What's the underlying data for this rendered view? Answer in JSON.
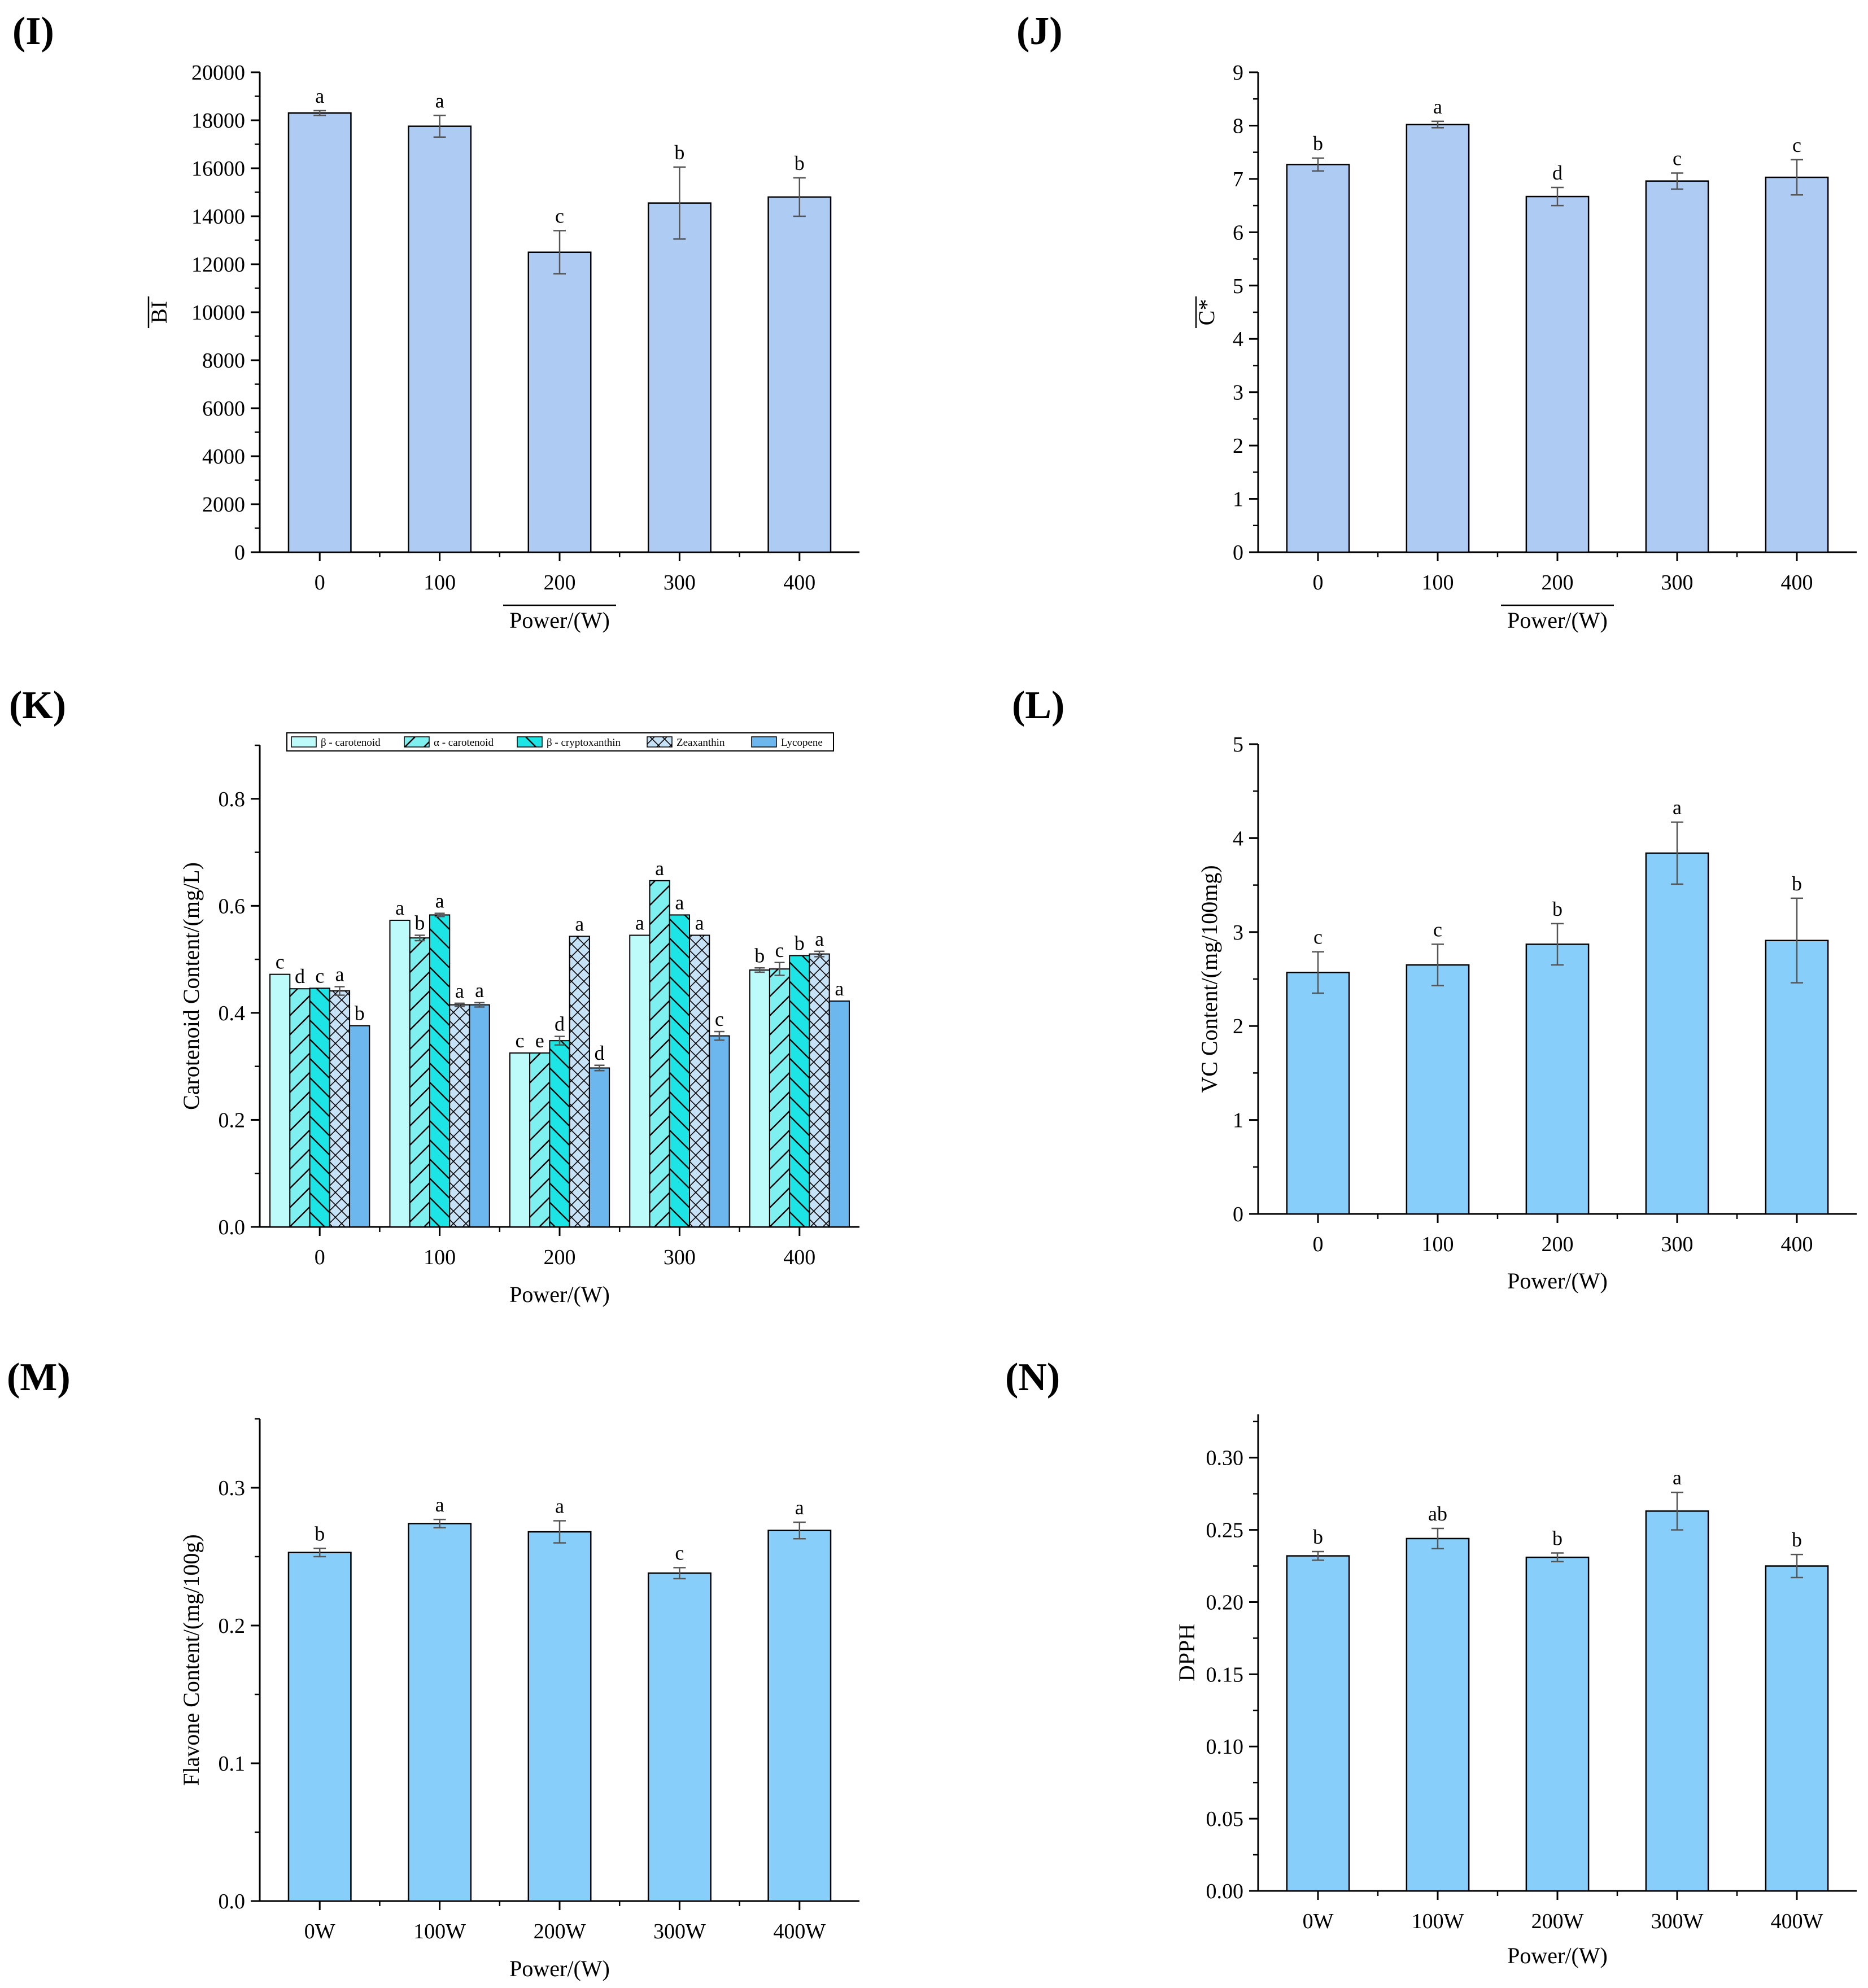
{
  "colors": {
    "light_bar": "#aecbf4",
    "blue_bar": "#87cefa",
    "beta_carotenoid": "#bdfbfb",
    "alpha_carotenoid": "#7ff0f0",
    "cryptoxanthin": "#1ee5e5",
    "zeaxanthin": "#c6e2f6",
    "lycopene": "#6cb8ee",
    "stroke": "#000000"
  },
  "chart_data": [
    {
      "id": "I",
      "panel_label": "(I)",
      "type": "bar",
      "categories": [
        "0",
        "100",
        "200",
        "300",
        "400"
      ],
      "values": [
        18300,
        17750,
        12500,
        14550,
        14800
      ],
      "errors": [
        100,
        450,
        900,
        1500,
        800
      ],
      "letters": [
        "a",
        "a",
        "c",
        "b",
        "b"
      ],
      "xlabel": "Power/(W)",
      "ylabel": "BI",
      "ylim": [
        0,
        20000
      ],
      "yticks": [
        0,
        2000,
        4000,
        6000,
        8000,
        10000,
        12000,
        14000,
        16000,
        18000,
        20000
      ],
      "ytick_labels": [
        "0",
        "2000",
        "4000",
        "6000",
        "8000",
        "10000",
        "12000",
        "14000",
        "16000",
        "18000",
        "20000"
      ],
      "color": "light_bar"
    },
    {
      "id": "J",
      "panel_label": "(J)",
      "type": "bar",
      "categories": [
        "0",
        "100",
        "200",
        "300",
        "400"
      ],
      "values": [
        7.27,
        8.02,
        6.67,
        6.96,
        7.03
      ],
      "errors": [
        0.12,
        0.06,
        0.17,
        0.15,
        0.33
      ],
      "letters": [
        "b",
        "a",
        "d",
        "c",
        "c"
      ],
      "xlabel": "Power/(W)",
      "ylabel": "C*",
      "ylim": [
        0,
        9
      ],
      "yticks": [
        0,
        1,
        2,
        3,
        4,
        5,
        6,
        7,
        8,
        9
      ],
      "ytick_labels": [
        "0",
        "1",
        "2",
        "3",
        "4",
        "5",
        "6",
        "7",
        "8",
        "9"
      ],
      "color": "light_bar"
    },
    {
      "id": "K",
      "panel_label": "(K)",
      "type": "bar",
      "categories": [
        "0",
        "100",
        "200",
        "300",
        "400"
      ],
      "series": [
        {
          "name": "β - carotenoid",
          "color": "beta_carotenoid",
          "pattern": "none",
          "values": [
            0.472,
            0.573,
            0.325,
            0.545,
            0.48
          ],
          "errors": [
            0.0,
            0.0,
            0.0,
            0.0,
            0.004
          ],
          "letters": [
            "c",
            "a",
            "c",
            "a",
            "b"
          ]
        },
        {
          "name": "α - carotenoid",
          "color": "alpha_carotenoid",
          "pattern": "slash",
          "values": [
            0.445,
            0.54,
            0.325,
            0.647,
            0.482
          ],
          "errors": [
            0.0,
            0.005,
            0.0,
            0.0,
            0.012
          ],
          "letters": [
            "d",
            "b",
            "e",
            "a",
            "c"
          ]
        },
        {
          "name": "β - cryptoxanthin",
          "color": "cryptoxanthin",
          "pattern": "backslash",
          "values": [
            0.446,
            0.583,
            0.348,
            0.583,
            0.507
          ],
          "errors": [
            0.0,
            0.003,
            0.008,
            0.0,
            0.0
          ],
          "letters": [
            "c",
            "a",
            "d",
            "a",
            "b"
          ]
        },
        {
          "name": "Zeaxanthin",
          "color": "zeaxanthin",
          "pattern": "cross",
          "values": [
            0.441,
            0.415,
            0.543,
            0.545,
            0.51
          ],
          "errors": [
            0.008,
            0.003,
            0.0,
            0.0,
            0.005
          ],
          "letters": [
            "a",
            "a",
            "a",
            "a",
            "a"
          ]
        },
        {
          "name": "Lycopene",
          "color": "lycopene",
          "pattern": "none",
          "values": [
            0.376,
            0.415,
            0.297,
            0.357,
            0.422
          ],
          "errors": [
            0.0,
            0.004,
            0.005,
            0.008,
            0.0
          ],
          "letters": [
            "b",
            "a",
            "d",
            "c",
            "a"
          ]
        }
      ],
      "xlabel": "Power/(W)",
      "ylabel": "Carotenoid Content/(mg/L)",
      "ylim": [
        0,
        0.9
      ],
      "yticks": [
        0,
        0.2,
        0.4,
        0.6,
        0.8
      ],
      "ytick_labels": [
        "0.0",
        "0.2",
        "0.4",
        "0.6",
        "0.8"
      ],
      "legend": "top"
    },
    {
      "id": "L",
      "panel_label": "(L)",
      "type": "bar",
      "categories": [
        "0",
        "100",
        "200",
        "300",
        "400"
      ],
      "values": [
        2.57,
        2.65,
        2.87,
        3.84,
        2.91
      ],
      "errors": [
        0.22,
        0.22,
        0.22,
        0.33,
        0.45
      ],
      "letters": [
        "c",
        "c",
        "b",
        "a",
        "b"
      ],
      "xlabel": "Power/(W)",
      "ylabel": "VC Content/(mg/100mg)",
      "ylim": [
        0,
        5
      ],
      "yticks": [
        0,
        1,
        2,
        3,
        4,
        5
      ],
      "ytick_labels": [
        "0",
        "1",
        "2",
        "3",
        "4",
        "5"
      ],
      "color": "blue_bar"
    },
    {
      "id": "M",
      "panel_label": "(M)",
      "type": "bar",
      "categories": [
        "0W",
        "100W",
        "200W",
        "300W",
        "400W"
      ],
      "values": [
        0.253,
        0.274,
        0.268,
        0.238,
        0.269
      ],
      "errors": [
        0.003,
        0.003,
        0.008,
        0.004,
        0.006
      ],
      "letters": [
        "b",
        "a",
        "a",
        "c",
        "a"
      ],
      "xlabel": "Power/(W)",
      "ylabel": "Flavone Content/(mg/100g)",
      "ylim": [
        0,
        0.35
      ],
      "yticks": [
        0,
        0.1,
        0.2,
        0.3
      ],
      "ytick_labels": [
        "0.0",
        "0.1",
        "0.2",
        "0.3"
      ],
      "color": "blue_bar"
    },
    {
      "id": "N",
      "panel_label": "(N)",
      "type": "bar",
      "categories": [
        "0W",
        "100W",
        "200W",
        "300W",
        "400W"
      ],
      "values": [
        0.232,
        0.244,
        0.231,
        0.263,
        0.225
      ],
      "errors": [
        0.003,
        0.007,
        0.003,
        0.013,
        0.008
      ],
      "letters": [
        "b",
        "ab",
        "b",
        "a",
        "b"
      ],
      "xlabel": "Power/(W)",
      "ylabel": "DPPH",
      "ylim": [
        0,
        0.33
      ],
      "yticks": [
        0,
        0.05,
        0.1,
        0.15,
        0.2,
        0.25,
        0.3
      ],
      "ytick_labels": [
        "0.00",
        "0.05",
        "0.10",
        "0.15",
        "0.20",
        "0.25",
        "0.30"
      ],
      "color": "blue_bar"
    }
  ]
}
